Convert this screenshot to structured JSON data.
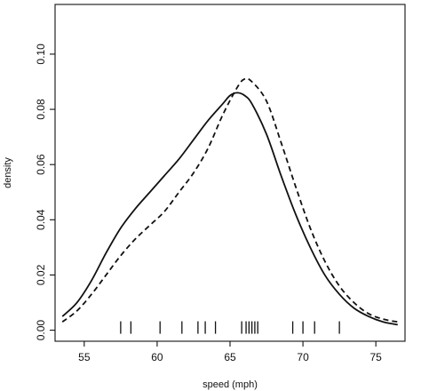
{
  "chart_data": {
    "type": "line",
    "xlabel": "speed (mph)",
    "ylabel": "density",
    "xlim": [
      53,
      77
    ],
    "ylim": [
      -0.004,
      0.118
    ],
    "x_ticks": [
      55,
      60,
      65,
      70,
      75
    ],
    "y_ticks": [
      0.0,
      0.02,
      0.04,
      0.06,
      0.08,
      0.1
    ],
    "y_tick_labels": [
      "0.00",
      "0.02",
      "0.04",
      "0.06",
      "0.08",
      "0.10"
    ],
    "grid": false,
    "legend": "none",
    "series": [
      {
        "style": "solid",
        "x": [
          53.5,
          54.5,
          55.5,
          56.5,
          57.5,
          58.5,
          59.5,
          60.5,
          61.5,
          62.5,
          63.5,
          64.5,
          65.0,
          65.5,
          66.0,
          66.5,
          67.5,
          68.5,
          69.5,
          70.5,
          71.5,
          72.5,
          73.5,
          74.5,
          75.5,
          76.5
        ],
        "y": [
          0.005,
          0.01,
          0.018,
          0.028,
          0.037,
          0.044,
          0.05,
          0.056,
          0.062,
          0.069,
          0.076,
          0.082,
          0.085,
          0.086,
          0.085,
          0.082,
          0.071,
          0.056,
          0.042,
          0.03,
          0.02,
          0.013,
          0.008,
          0.005,
          0.003,
          0.002
        ]
      },
      {
        "style": "dashed",
        "x": [
          53.5,
          54.5,
          55.5,
          56.5,
          57.5,
          58.5,
          59.5,
          60.5,
          61.5,
          62.5,
          63.5,
          64.5,
          65.5,
          66.0,
          66.5,
          67.5,
          68.5,
          69.5,
          70.5,
          71.5,
          72.5,
          73.5,
          74.5,
          75.5,
          76.5
        ],
        "y": [
          0.003,
          0.007,
          0.013,
          0.02,
          0.027,
          0.033,
          0.038,
          0.043,
          0.05,
          0.057,
          0.066,
          0.078,
          0.088,
          0.091,
          0.09,
          0.083,
          0.068,
          0.052,
          0.037,
          0.025,
          0.016,
          0.01,
          0.006,
          0.004,
          0.003
        ]
      }
    ],
    "rug": [
      57.5,
      58.2,
      60.2,
      61.7,
      62.8,
      63.3,
      64.0,
      65.8,
      66.1,
      66.3,
      66.5,
      66.7,
      66.9,
      69.3,
      70.0,
      70.8,
      72.5
    ]
  }
}
